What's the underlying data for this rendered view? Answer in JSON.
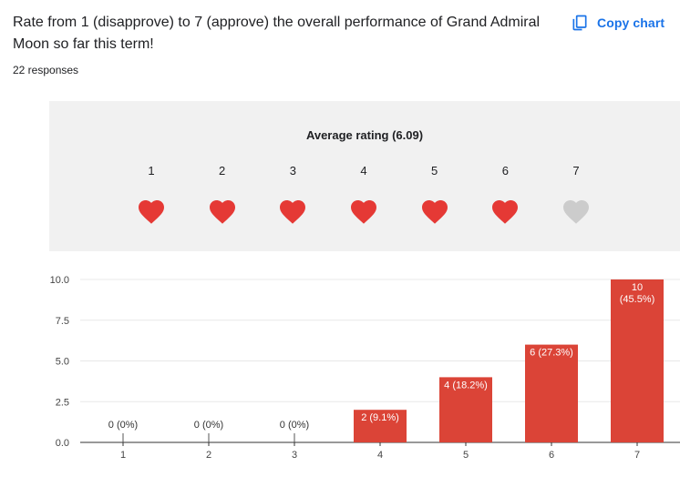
{
  "question": {
    "title": "Rate from 1 (disapprove) to 7 (approve) the overall performance of Grand Admiral Moon so far this term!",
    "responses": "22 responses"
  },
  "toolbar": {
    "copy_label": "Copy chart",
    "copy_icon": "copy-icon"
  },
  "rating": {
    "title": "Average rating (6.09)",
    "scale": [
      "1",
      "2",
      "3",
      "4",
      "5",
      "6",
      "7"
    ],
    "filled": [
      true,
      true,
      true,
      true,
      true,
      true,
      false
    ],
    "filled_color": "#e53935",
    "empty_color": "#cccccc"
  },
  "chart_data": {
    "type": "bar",
    "categories": [
      "1",
      "2",
      "3",
      "4",
      "5",
      "6",
      "7"
    ],
    "values": [
      0,
      0,
      0,
      2,
      4,
      6,
      10
    ],
    "labels": [
      "0 (0%)",
      "0 (0%)",
      "0 (0%)",
      "2 (9.1%)",
      "4 (18.2%)",
      "6 (27.3%)",
      "10\n(45.5%)"
    ],
    "yticks": [
      "0.0",
      "2.5",
      "5.0",
      "7.5",
      "10.0"
    ],
    "ylim": [
      0,
      10
    ],
    "bar_color": "#db4437",
    "grid": true
  }
}
